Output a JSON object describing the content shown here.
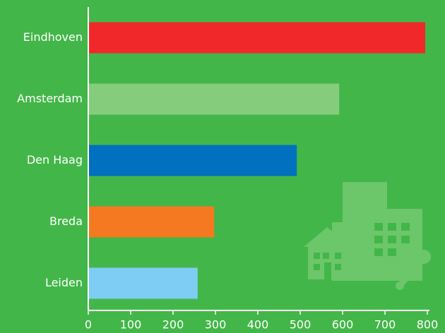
{
  "chart_data": {
    "type": "bar",
    "orientation": "horizontal",
    "categories": [
      "Eindhoven",
      "Amsterdam",
      "Den Haag",
      "Breda",
      "Leiden"
    ],
    "values": [
      795,
      592,
      492,
      297,
      258
    ],
    "colors": [
      "#f0282a",
      "#85cc7d",
      "#0070bf",
      "#f47920",
      "#7dcdf5"
    ],
    "xlim": [
      0,
      800
    ],
    "xticks": [
      0,
      100,
      200,
      300,
      400,
      500,
      600,
      700,
      800
    ]
  }
}
